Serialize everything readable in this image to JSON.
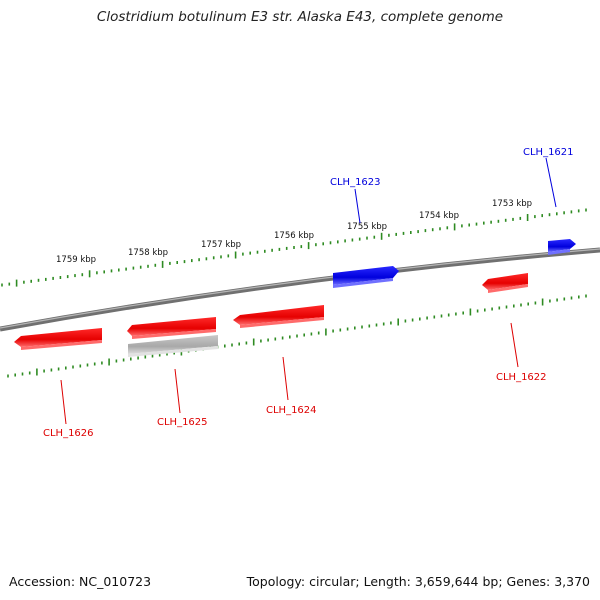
{
  "title": "Clostridium botulinum E3 str. Alaska E43, complete genome",
  "footer": {
    "accession": "Accession: NC_010723",
    "summary": "Topology: circular; Length: 3,659,644 bp; Genes: 3,370"
  },
  "kbp_labels": [
    "1759 kbp",
    "1758 kbp",
    "1757 kbp",
    "1756 kbp",
    "1755 kbp",
    "1754 kbp",
    "1753 kbp"
  ],
  "genes": [
    {
      "name": "CLH_1621",
      "strand": "forward",
      "color": "#0000ee"
    },
    {
      "name": "CLH_1622",
      "strand": "reverse",
      "color": "#ee0000"
    },
    {
      "name": "CLH_1623",
      "strand": "forward",
      "color": "#0000ee"
    },
    {
      "name": "CLH_1624",
      "strand": "reverse",
      "color": "#ee0000"
    },
    {
      "name": "CLH_1625",
      "strand": "reverse",
      "color": "#ee0000"
    },
    {
      "name": "CLH_1626",
      "strand": "reverse",
      "color": "#ee0000"
    }
  ],
  "colors": {
    "forward": "#0000ee",
    "reverse": "#ee0000",
    "pseudo": "#b0b0b0",
    "backbone": "#808080",
    "ticks": "#2e8b22"
  }
}
